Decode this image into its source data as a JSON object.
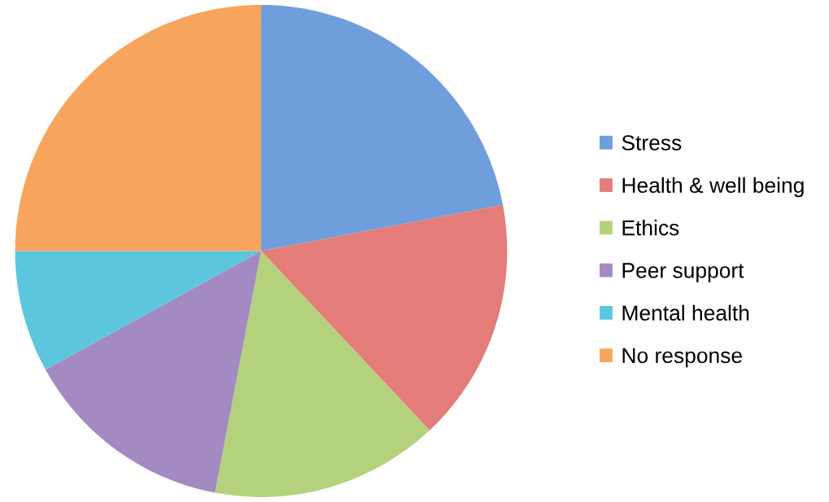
{
  "chart_data": {
    "type": "pie",
    "categories": [
      "Stress",
      "Health & well being",
      "Ethics",
      "Peer support",
      "Mental health",
      "No response"
    ],
    "values": [
      22,
      16,
      15,
      14,
      8,
      25
    ],
    "colors": [
      "#6e9edb",
      "#e47c79",
      "#b4d27b",
      "#a48ac2",
      "#5cc6df",
      "#f7a55c"
    ],
    "legend": "right"
  }
}
